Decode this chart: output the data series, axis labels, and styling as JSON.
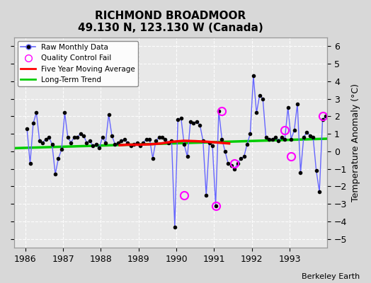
{
  "title": "RICHMOND BROADMOOR",
  "subtitle": "49.130 N, 123.130 W (Canada)",
  "credit": "Berkeley Earth",
  "ylabel": "Temperature Anomaly (°C)",
  "ylim": [
    -5.5,
    6.5
  ],
  "yticks": [
    -5,
    -4,
    -3,
    -2,
    -1,
    0,
    1,
    2,
    3,
    4,
    5,
    6
  ],
  "xlim": [
    1985.7,
    1994.0
  ],
  "xticks": [
    1986,
    1987,
    1988,
    1989,
    1990,
    1991,
    1992,
    1993
  ],
  "raw_color": "#6666ff",
  "raw_marker_color": "#000000",
  "qc_color": "#ff00ff",
  "ma_color": "#ff0000",
  "trend_color": "#00cc00",
  "raw_data_x": [
    1986.042,
    1986.125,
    1986.208,
    1986.292,
    1986.375,
    1986.458,
    1986.542,
    1986.625,
    1986.708,
    1986.792,
    1986.875,
    1986.958,
    1987.042,
    1987.125,
    1987.208,
    1987.292,
    1987.375,
    1987.458,
    1987.542,
    1987.625,
    1987.708,
    1987.792,
    1987.875,
    1987.958,
    1988.042,
    1988.125,
    1988.208,
    1988.292,
    1988.375,
    1988.458,
    1988.542,
    1988.625,
    1988.708,
    1988.792,
    1988.875,
    1988.958,
    1989.042,
    1989.125,
    1989.208,
    1989.292,
    1989.375,
    1989.458,
    1989.542,
    1989.625,
    1989.708,
    1989.792,
    1989.875,
    1989.958,
    1990.042,
    1990.125,
    1990.208,
    1990.292,
    1990.375,
    1990.458,
    1990.542,
    1990.625,
    1990.708,
    1990.792,
    1990.875,
    1990.958,
    1991.042,
    1991.125,
    1991.208,
    1991.292,
    1991.375,
    1991.458,
    1991.542,
    1991.625,
    1991.708,
    1991.792,
    1991.875,
    1991.958,
    1992.042,
    1992.125,
    1992.208,
    1992.292,
    1992.375,
    1992.458,
    1992.542,
    1992.625,
    1992.708,
    1992.792,
    1992.875,
    1992.958,
    1993.042,
    1993.125,
    1993.208,
    1993.292,
    1993.375,
    1993.458,
    1993.542,
    1993.625,
    1993.708,
    1993.792,
    1993.875,
    1993.958
  ],
  "raw_data_y": [
    1.3,
    -0.7,
    1.6,
    2.2,
    0.6,
    0.5,
    0.7,
    0.8,
    0.4,
    -1.3,
    -0.4,
    0.1,
    2.2,
    0.8,
    0.5,
    0.8,
    0.8,
    1.0,
    0.9,
    0.5,
    0.6,
    0.3,
    0.4,
    0.2,
    0.8,
    0.5,
    2.1,
    0.9,
    0.4,
    0.5,
    0.6,
    0.7,
    0.5,
    0.3,
    0.4,
    0.5,
    0.3,
    0.5,
    0.7,
    0.7,
    -0.4,
    0.6,
    0.8,
    0.8,
    0.7,
    0.5,
    0.6,
    -4.3,
    1.8,
    1.9,
    0.4,
    -0.3,
    1.7,
    1.6,
    1.7,
    1.5,
    0.6,
    -2.5,
    0.5,
    0.3,
    -3.1,
    2.3,
    0.7,
    0.0,
    -0.7,
    -0.8,
    -1.0,
    -0.7,
    -0.4,
    -0.3,
    0.4,
    1.0,
    4.3,
    2.2,
    3.2,
    3.0,
    0.8,
    0.7,
    0.7,
    0.8,
    0.6,
    0.8,
    0.7,
    2.5,
    0.7,
    1.2,
    2.7,
    -1.2,
    0.8,
    1.1,
    0.9,
    0.8,
    -1.1,
    -2.3,
    1.8,
    2.0
  ],
  "qc_fail_x": [
    1990.208,
    1991.042,
    1991.208,
    1992.875,
    1993.875,
    1991.542,
    1993.042
  ],
  "qc_fail_y": [
    -2.5,
    -3.1,
    2.3,
    1.2,
    2.0,
    -0.7,
    -0.3
  ],
  "ma_x": [
    1988.5,
    1988.7,
    1989.0,
    1989.3,
    1989.6,
    1989.9,
    1990.2,
    1990.5,
    1990.8,
    1991.1,
    1991.4
  ],
  "ma_y": [
    0.35,
    0.38,
    0.38,
    0.4,
    0.45,
    0.55,
    0.6,
    0.58,
    0.55,
    0.5,
    0.45
  ],
  "trend_x": [
    1985.7,
    1994.0
  ],
  "trend_y": [
    0.18,
    0.72
  ]
}
